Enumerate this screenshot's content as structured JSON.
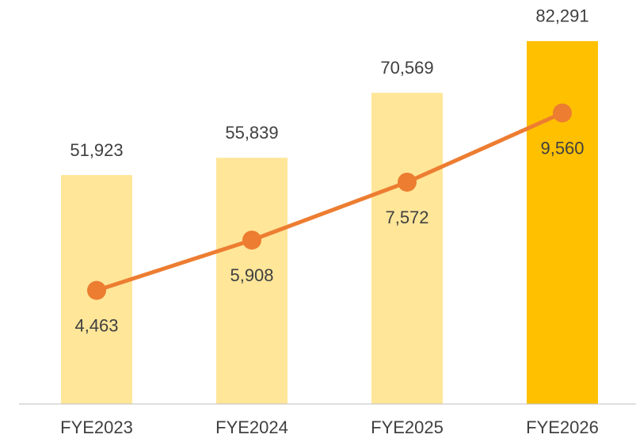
{
  "chart_data": {
    "type": "bar",
    "categories": [
      "FYE2023",
      "FYE2024",
      "FYE2025",
      "FYE2026"
    ],
    "series": [
      {
        "type": "bar",
        "values": [
          51923,
          55839,
          70569,
          82291
        ],
        "value_labels": [
          "51,923",
          "55,839",
          "70,569",
          "82,291"
        ],
        "colors": [
          "#ffe699",
          "#ffe699",
          "#ffe699",
          "#ffc000"
        ]
      },
      {
        "type": "line",
        "axis": "y2",
        "color": "#ed7d31",
        "values": [
          4463,
          5908,
          7572,
          9560
        ],
        "value_labels": [
          "4,463",
          "5,908",
          "7,572",
          "9,560"
        ]
      }
    ],
    "ylim": [
      0,
      90000
    ],
    "y2lim": [
      1200,
      12600
    ]
  }
}
